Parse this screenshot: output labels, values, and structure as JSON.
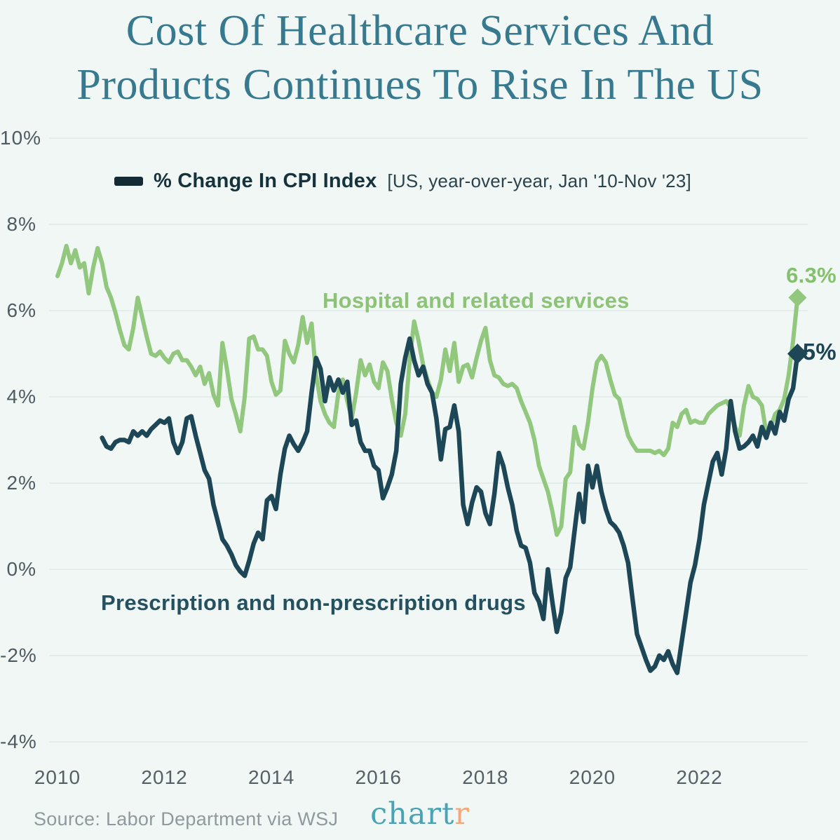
{
  "title": {
    "line1": "Cost Of Healthcare Services And",
    "line2": "Products Continues To Rise In The US"
  },
  "legend": {
    "label": "% Change In CPI Index",
    "qualifier": "[US, year-over-year, Jan '10-Nov '23]"
  },
  "annotations": {
    "hospital_series_label": "Hospital and related services",
    "drugs_series_label": "Prescription and non-prescription drugs"
  },
  "footer": {
    "source": "Source: Labor Department via WSJ",
    "logo_main": "chart",
    "logo_accent": "r"
  },
  "colors": {
    "background": "#f0f7f4",
    "gridline": "#e3edea",
    "title": "#37798f",
    "hospital_line": "#92c77e",
    "drugs_line": "#1d4656",
    "axis_text": "#4f5b62",
    "source_text": "#8f999e",
    "logo_teal": "#48a3b6",
    "logo_orange": "#f3a77b"
  },
  "chart_data": {
    "type": "line",
    "title": "% Change In CPI Index [US, year-over-year, Jan '10-Nov '23]",
    "x_frequency": "monthly",
    "x_start": "2010-01",
    "x_end": "2023-11",
    "x_ticks": [
      2010,
      2012,
      2014,
      2016,
      2018,
      2020,
      2022
    ],
    "y_ticks_percent": [
      10,
      8,
      6,
      4,
      2,
      0,
      -2,
      -4
    ],
    "ylim": [
      -4.5,
      10.5
    ],
    "grid": "horizontal",
    "legend_position": "top-left-inside",
    "series": [
      {
        "name": "Hospital and related services",
        "color": "#92c77e",
        "end_label": "6.3%",
        "values": [
          6.8,
          7.1,
          7.5,
          7.1,
          7.4,
          7.0,
          7.1,
          6.4,
          7.0,
          7.45,
          7.1,
          6.55,
          6.3,
          5.95,
          5.55,
          5.2,
          5.1,
          5.6,
          6.3,
          5.85,
          5.4,
          5.0,
          4.95,
          5.05,
          4.9,
          4.8,
          5.0,
          5.05,
          4.85,
          4.85,
          4.7,
          4.5,
          4.7,
          4.3,
          4.55,
          4.05,
          3.8,
          5.25,
          4.65,
          3.95,
          3.6,
          3.2,
          4.0,
          5.35,
          5.4,
          5.1,
          5.1,
          4.95,
          4.35,
          4.05,
          4.15,
          5.3,
          5.0,
          4.8,
          5.2,
          5.85,
          5.25,
          5.7,
          4.5,
          3.9,
          3.6,
          3.4,
          3.3,
          4.1,
          4.4,
          3.9,
          3.5,
          4.1,
          4.85,
          4.5,
          4.75,
          4.35,
          4.2,
          4.8,
          4.6,
          3.95,
          3.4,
          3.1,
          3.6,
          4.85,
          5.75,
          5.3,
          4.75,
          4.4,
          4.1,
          4.0,
          4.4,
          5.1,
          4.6,
          5.25,
          4.35,
          4.7,
          4.75,
          4.45,
          4.9,
          5.3,
          5.6,
          4.85,
          4.5,
          4.45,
          4.3,
          4.25,
          4.3,
          4.2,
          3.9,
          3.65,
          3.4,
          3.0,
          2.4,
          2.1,
          1.8,
          1.35,
          0.8,
          1.0,
          2.1,
          2.25,
          3.3,
          2.9,
          2.8,
          3.4,
          4.2,
          4.8,
          4.95,
          4.8,
          4.4,
          4.05,
          3.95,
          3.5,
          3.1,
          2.9,
          2.75,
          2.75,
          2.75,
          2.75,
          2.7,
          2.75,
          2.65,
          2.8,
          3.4,
          3.3,
          3.6,
          3.7,
          3.4,
          3.45,
          3.4,
          3.4,
          3.6,
          3.7,
          3.8,
          3.85,
          3.9,
          3.75,
          3.3,
          3.1,
          3.8,
          4.25,
          4.0,
          3.95,
          3.8,
          3.15,
          3.3,
          3.6,
          3.7,
          3.95,
          4.5,
          5.3,
          6.3
        ]
      },
      {
        "name": "Prescription and non-prescription drugs",
        "color": "#1d4656",
        "end_label": "5%",
        "values": [
          null,
          null,
          null,
          null,
          null,
          null,
          null,
          null,
          null,
          null,
          3.05,
          2.85,
          2.8,
          2.95,
          3.0,
          3.0,
          2.95,
          3.2,
          3.1,
          3.2,
          3.1,
          3.25,
          3.35,
          3.45,
          3.4,
          3.5,
          2.95,
          2.7,
          2.95,
          3.5,
          3.55,
          3.1,
          2.7,
          2.3,
          2.1,
          1.5,
          1.1,
          0.7,
          0.55,
          0.35,
          0.1,
          -0.05,
          -0.15,
          0.2,
          0.6,
          0.85,
          0.7,
          1.6,
          1.7,
          1.4,
          2.2,
          2.8,
          3.1,
          2.9,
          2.75,
          2.95,
          3.2,
          4.1,
          4.9,
          4.65,
          3.9,
          4.45,
          4.15,
          4.4,
          4.1,
          4.35,
          3.35,
          3.45,
          2.95,
          2.75,
          2.75,
          2.4,
          2.3,
          1.65,
          1.9,
          2.2,
          2.75,
          4.3,
          4.9,
          5.35,
          4.85,
          4.5,
          4.7,
          4.3,
          4.1,
          3.5,
          2.55,
          3.25,
          3.3,
          3.8,
          3.2,
          1.5,
          1.05,
          1.55,
          1.9,
          1.8,
          1.3,
          1.05,
          1.75,
          2.7,
          2.4,
          1.9,
          1.5,
          0.9,
          0.55,
          0.5,
          0.15,
          -0.55,
          -0.75,
          -1.15,
          0.0,
          -0.75,
          -1.45,
          -1.0,
          -0.2,
          0.05,
          0.9,
          1.75,
          1.1,
          2.4,
          1.9,
          2.4,
          1.8,
          1.4,
          1.1,
          1.0,
          0.85,
          0.55,
          0.15,
          -0.7,
          -1.5,
          -1.8,
          -2.1,
          -2.35,
          -2.25,
          -2.0,
          -2.1,
          -1.9,
          -2.2,
          -2.4,
          -1.7,
          -1.0,
          -0.3,
          0.1,
          0.7,
          1.5,
          2.0,
          2.5,
          2.7,
          2.2,
          2.8,
          3.9,
          3.2,
          2.8,
          2.85,
          2.95,
          3.1,
          2.85,
          3.3,
          3.05,
          3.4,
          3.15,
          3.65,
          3.45,
          3.95,
          4.2,
          5.0
        ]
      }
    ]
  }
}
